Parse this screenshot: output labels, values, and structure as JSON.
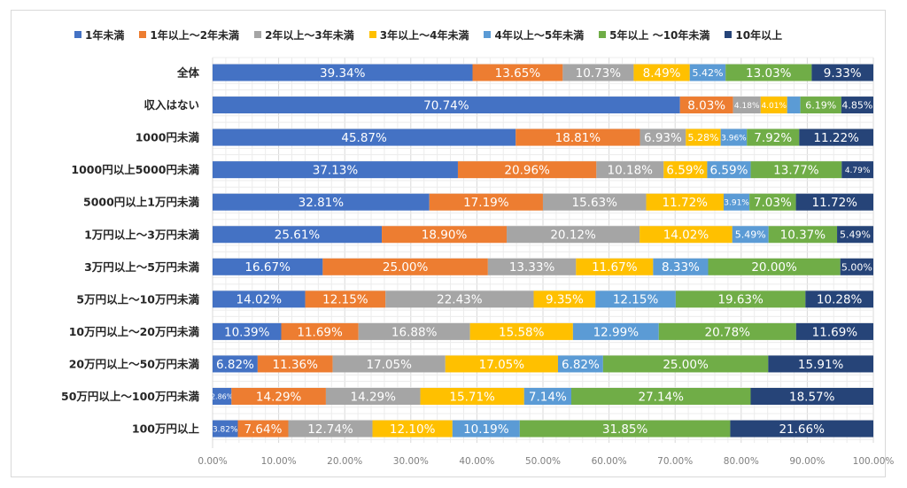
{
  "chart_data": {
    "type": "bar",
    "orientation": "horizontal",
    "stacked": "percent",
    "title": "",
    "xlabel": "",
    "ylabel": "",
    "xlim": [
      0,
      100
    ],
    "grid": true,
    "legend_position": "top",
    "x_ticks": [
      "0.00%",
      "10.00%",
      "20.00%",
      "30.00%",
      "40.00%",
      "50.00%",
      "60.00%",
      "70.00%",
      "80.00%",
      "90.00%",
      "100.00%"
    ],
    "categories": [
      "全体",
      "収入はない",
      "1000円未満",
      "1000円以上5000円未満",
      "5000円以上1万円未満",
      "1万円以上～3万円未満",
      "3万円以上～5万円未満",
      "5万円以上～10万円未満",
      "10万円以上～20万円未満",
      "20万円以上～50万円未満",
      "50万円以上～100万円未満",
      "100万円以上"
    ],
    "series": [
      {
        "name": "1年未満",
        "color": "#4472c4",
        "values": [
          39.34,
          70.74,
          45.87,
          37.13,
          32.81,
          25.61,
          16.67,
          14.02,
          10.39,
          6.82,
          2.86,
          3.82
        ],
        "labels": [
          "39.34%",
          "70.74%",
          "45.87%",
          "37.13%",
          "32.81%",
          "25.61%",
          "16.67%",
          "14.02%",
          "10.39%",
          "6.82%",
          "2.86%",
          "3.82%"
        ]
      },
      {
        "name": "1年以上～2年未満",
        "color": "#ed7d31",
        "values": [
          13.65,
          8.03,
          18.81,
          20.96,
          17.19,
          18.9,
          25.0,
          12.15,
          11.69,
          11.36,
          14.29,
          7.64
        ],
        "labels": [
          "13.65%",
          "8.03%",
          "18.81%",
          "20.96%",
          "17.19%",
          "18.90%",
          "25.00%",
          "12.15%",
          "11.69%",
          "11.36%",
          "14.29%",
          "7.64%"
        ]
      },
      {
        "name": "2年以上～3年未満",
        "color": "#a5a5a5",
        "values": [
          10.73,
          4.18,
          6.93,
          10.18,
          15.63,
          20.12,
          13.33,
          22.43,
          16.88,
          17.05,
          14.29,
          12.74
        ],
        "labels": [
          "10.73%",
          "4.18%",
          "6.93%",
          "10.18%",
          "15.63%",
          "20.12%",
          "13.33%",
          "22.43%",
          "16.88%",
          "17.05%",
          "14.29%",
          "12.74%"
        ]
      },
      {
        "name": "3年以上～4年未満",
        "color": "#ffc000",
        "values": [
          8.49,
          4.01,
          5.28,
          6.59,
          11.72,
          14.02,
          11.67,
          9.35,
          15.58,
          17.05,
          15.71,
          12.1
        ],
        "labels": [
          "8.49%",
          "4.01%",
          "5.28%",
          "6.59%",
          "11.72%",
          "14.02%",
          "11.67%",
          "9.35%",
          "15.58%",
          "17.05%",
          "15.71%",
          "12.10%"
        ]
      },
      {
        "name": "4年以上～5年未満",
        "color": "#5b9bd5",
        "values": [
          5.42,
          2.0,
          3.96,
          6.59,
          3.91,
          5.49,
          8.33,
          12.15,
          12.99,
          6.82,
          7.14,
          10.19
        ],
        "labels": [
          "5.42%",
          "",
          "3.96%",
          "6.59%",
          "3.91%",
          "5.49%",
          "8.33%",
          "12.15%",
          "12.99%",
          "6.82%",
          "7.14%",
          "10.19%"
        ]
      },
      {
        "name": "5年以上 ～10年未満",
        "color": "#70ad47",
        "values": [
          13.03,
          6.19,
          7.92,
          13.77,
          7.03,
          10.37,
          20.0,
          19.63,
          20.78,
          25.0,
          27.14,
          31.85
        ],
        "labels": [
          "13.03%",
          "6.19%",
          "7.92%",
          "13.77%",
          "7.03%",
          "10.37%",
          "20.00%",
          "19.63%",
          "20.78%",
          "25.00%",
          "27.14%",
          "31.85%"
        ]
      },
      {
        "name": "10年以上",
        "color": "#264478",
        "values": [
          9.33,
          4.85,
          11.22,
          4.79,
          11.72,
          5.49,
          5.0,
          10.28,
          11.69,
          15.91,
          18.57,
          21.66
        ],
        "labels": [
          "9.33%",
          "4.85%",
          "11.22%",
          "4.79%",
          "11.72%",
          "5.49%",
          "5.00%",
          "10.28%",
          "11.69%",
          "15.91%",
          "18.57%",
          "21.66%"
        ]
      }
    ]
  }
}
